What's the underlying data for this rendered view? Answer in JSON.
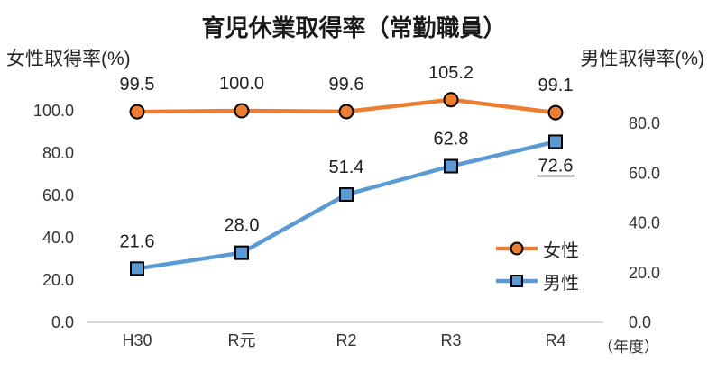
{
  "chart_data": {
    "type": "line",
    "title": "育児休業取得率（常勤職員）",
    "categories": [
      "H30",
      "R元",
      "R2",
      "R3",
      "R4"
    ],
    "x_axis_unit": "（年度）",
    "left_axis": {
      "title": "女性取得率(%)",
      "tick_labels": [
        "0.0",
        "20.0",
        "40.0",
        "60.0",
        "80.0",
        "100.0"
      ],
      "range": [
        0,
        100
      ],
      "tick_interval": 20
    },
    "right_axis": {
      "title": "男性取得率(%)",
      "tick_labels": [
        "0.0",
        "20.0",
        "40.0",
        "60.0",
        "80.0"
      ],
      "range": [
        0,
        80
      ],
      "tick_interval": 20
    },
    "series": [
      {
        "name": "女性",
        "axis": "left",
        "color": "#ED7D31",
        "marker": "circle",
        "values": [
          99.5,
          100.0,
          99.6,
          105.2,
          99.1
        ],
        "data_labels": [
          "99.5",
          "100.0",
          "99.6",
          "105.2",
          "99.1"
        ],
        "label_positions": [
          "above",
          "above",
          "above",
          "above",
          "above"
        ],
        "label_underlines": [
          false,
          false,
          false,
          false,
          false
        ]
      },
      {
        "name": "男性",
        "axis": "right",
        "color": "#5B9BD5",
        "marker": "square",
        "values": [
          21.6,
          28.0,
          51.4,
          62.8,
          72.6
        ],
        "data_labels": [
          "21.6",
          "28.0",
          "51.4",
          "62.8",
          "72.6"
        ],
        "label_positions": [
          "above",
          "above",
          "above",
          "above",
          "below"
        ],
        "label_underlines": [
          false,
          false,
          false,
          false,
          true
        ]
      }
    ],
    "legend": {
      "entries": [
        "女性",
        "男性"
      ],
      "position": "inside-right"
    },
    "grid": "none"
  },
  "colors": {
    "axis_line": "#D9D9D9",
    "tick_text": "#333333",
    "data_label_text": "#1f1f1f",
    "title_text": "#1a1a1a",
    "marker_outline": "#000000"
  }
}
